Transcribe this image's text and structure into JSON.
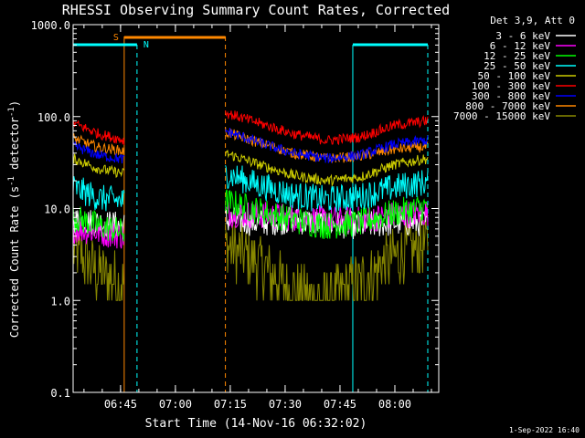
{
  "chart_data": {
    "type": "line",
    "title": "RHESSI Observing Summary Count Rates, Corrected",
    "xlabel": "Start Time (14-Nov-16 06:32:02)",
    "ylabel_parts": [
      "Corrected Count Rate (s",
      "-1",
      " detector",
      "-1",
      ")"
    ],
    "y_scale": "log",
    "ylim": [
      0.1,
      1000
    ],
    "y_ticks": [
      {
        "value": 1000,
        "label": "1000.0"
      },
      {
        "value": 100,
        "label": "100.0"
      },
      {
        "value": 10,
        "label": "10.0"
      },
      {
        "value": 1,
        "label": "1.0"
      },
      {
        "value": 0.1,
        "label": "0.1"
      }
    ],
    "x_range": [
      "06:32:02",
      "08:12:00"
    ],
    "x_ticks": [
      {
        "time": "06:45",
        "label": "06:45"
      },
      {
        "time": "07:00",
        "label": "07:00"
      },
      {
        "time": "07:15",
        "label": "07:15"
      },
      {
        "time": "07:30",
        "label": "07:30"
      },
      {
        "time": "07:45",
        "label": "07:45"
      },
      {
        "time": "08:00",
        "label": "08:00"
      }
    ],
    "legend_title": "Det 3,9, Att 0",
    "legend_position": "right",
    "segments": [
      [
        "06:32:02",
        "06:46:00"
      ],
      [
        "07:13:40",
        "08:09:00"
      ]
    ],
    "series": [
      {
        "name": "3 - 6 keV",
        "color": "#ffffff",
        "values": [
          7.5,
          7.0,
          6.5,
          7.5,
          7.0,
          7.5,
          6.8,
          6.5,
          7.0,
          7.0
        ]
      },
      {
        "name": "6 - 12 keV",
        "color": "#ff00ff",
        "values": [
          6.0,
          5.5,
          5.0,
          9.0,
          8.5,
          8.0,
          7.5,
          7.5,
          8.5,
          9.0
        ]
      },
      {
        "name": "12 - 25 keV",
        "color": "#00ff00",
        "values": [
          8.0,
          6.5,
          5.5,
          12.0,
          9.5,
          7.5,
          6.5,
          7.0,
          9.0,
          10.5
        ]
      },
      {
        "name": "25 - 50 keV",
        "color": "#00ffff",
        "values": [
          17.0,
          13.0,
          12.0,
          24.0,
          18.0,
          14.0,
          12.5,
          13.5,
          17.0,
          19.5
        ]
      },
      {
        "name": "50 - 100 keV",
        "color": "#cccc00",
        "values": [
          35.0,
          27.0,
          24.0,
          40.0,
          30.0,
          23.0,
          20.0,
          22.0,
          30.0,
          35.0
        ]
      },
      {
        "name": "100 - 300 keV",
        "color": "#ff0000",
        "values": [
          85.0,
          65.0,
          55.0,
          110.0,
          85.0,
          65.0,
          55.0,
          60.0,
          80.0,
          90.0
        ]
      },
      {
        "name": "300 - 800 keV",
        "color": "#0000ff",
        "values": [
          48.0,
          38.0,
          34.0,
          70.0,
          52.0,
          40.0,
          35.0,
          38.0,
          50.0,
          55.0
        ]
      },
      {
        "name": "800 - 7000 keV",
        "color": "#ff8800",
        "values": [
          58.0,
          46.0,
          42.0,
          68.0,
          52.0,
          40.0,
          35.0,
          37.0,
          44.0,
          47.0
        ]
      },
      {
        "name": "7000 - 15000 keV",
        "color": "#888800",
        "values": [
          3.5,
          2.0,
          1.5,
          4.0,
          2.5,
          1.3,
          1.0,
          1.6,
          3.0,
          4.0
        ]
      }
    ],
    "annotations": {
      "saa": {
        "label": "S",
        "color": "#ff8800",
        "start": "06:46:00",
        "end": "07:13:40"
      },
      "night": [
        {
          "label": "N",
          "color": "#00ffff",
          "start": "06:32:02",
          "end": "06:49:30"
        },
        {
          "label": "",
          "color": "#00ffff",
          "start": "07:48:30",
          "end": "08:09:00"
        }
      ]
    },
    "grid": false
  },
  "footer": {
    "date": "1-Sep-2022 16:40"
  }
}
